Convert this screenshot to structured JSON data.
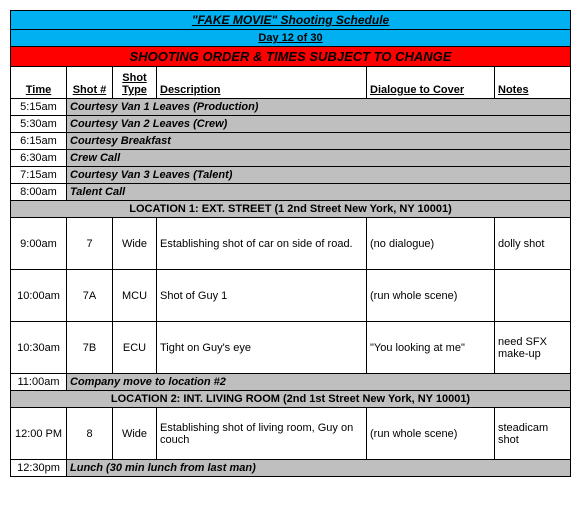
{
  "title": "\"FAKE MOVIE\" Shooting Schedule",
  "day": "Day 12 of 30",
  "warning": "SHOOTING ORDER & TIMES SUBJECT TO CHANGE",
  "headers": {
    "time": "Time",
    "shot": "Shot #",
    "type": "Shot Type",
    "desc": "Description",
    "dial": "Dialogue to Cover",
    "notes": "Notes"
  },
  "events": [
    {
      "time": "5:15am",
      "text": "Courtesy Van 1 Leaves (Production)"
    },
    {
      "time": "5:30am",
      "text": "Courtesy Van 2 Leaves (Crew)"
    },
    {
      "time": "6:15am",
      "text": "Courtesy Breakfast"
    },
    {
      "time": "6:30am",
      "text": "Crew Call"
    },
    {
      "time": "7:15am",
      "text": "Courtesy Van 3 Leaves (Talent)"
    },
    {
      "time": "8:00am",
      "text": "Talent Call"
    }
  ],
  "location1": "LOCATION 1: EXT. STREET (1 2nd Street New York, NY 10001)",
  "shots1": [
    {
      "time": "9:00am",
      "shot": "7",
      "type": "Wide",
      "desc": "Establishing shot of car on side of road.",
      "dial": "(no dialogue)",
      "notes": "dolly shot"
    },
    {
      "time": "10:00am",
      "shot": "7A",
      "type": "MCU",
      "desc": "Shot of Guy 1",
      "dial": "(run whole scene)",
      "notes": ""
    },
    {
      "time": "10:30am",
      "shot": "7B",
      "type": "ECU",
      "desc": "Tight on Guy's eye",
      "dial": "\"You looking at me\"",
      "notes": "need SFX make-up"
    }
  ],
  "move": {
    "time": "11:00am",
    "text": "Company move to location #2"
  },
  "location2": "LOCATION 2: INT. LIVING ROOM (2nd 1st Street New York, NY 10001)",
  "shots2": [
    {
      "time": "12:00 PM",
      "shot": "8",
      "type": "Wide",
      "desc": "Establishing shot of living room, Guy on couch",
      "dial": "(run whole scene)",
      "notes": "steadicam shot"
    }
  ],
  "lunch": {
    "time": "12:30pm",
    "text": "Lunch (30 min lunch from last man)"
  },
  "colors": {
    "header_bg": "#00b0f0",
    "warning_bg": "#ff0000",
    "grey_bg": "#bfbfbf"
  }
}
